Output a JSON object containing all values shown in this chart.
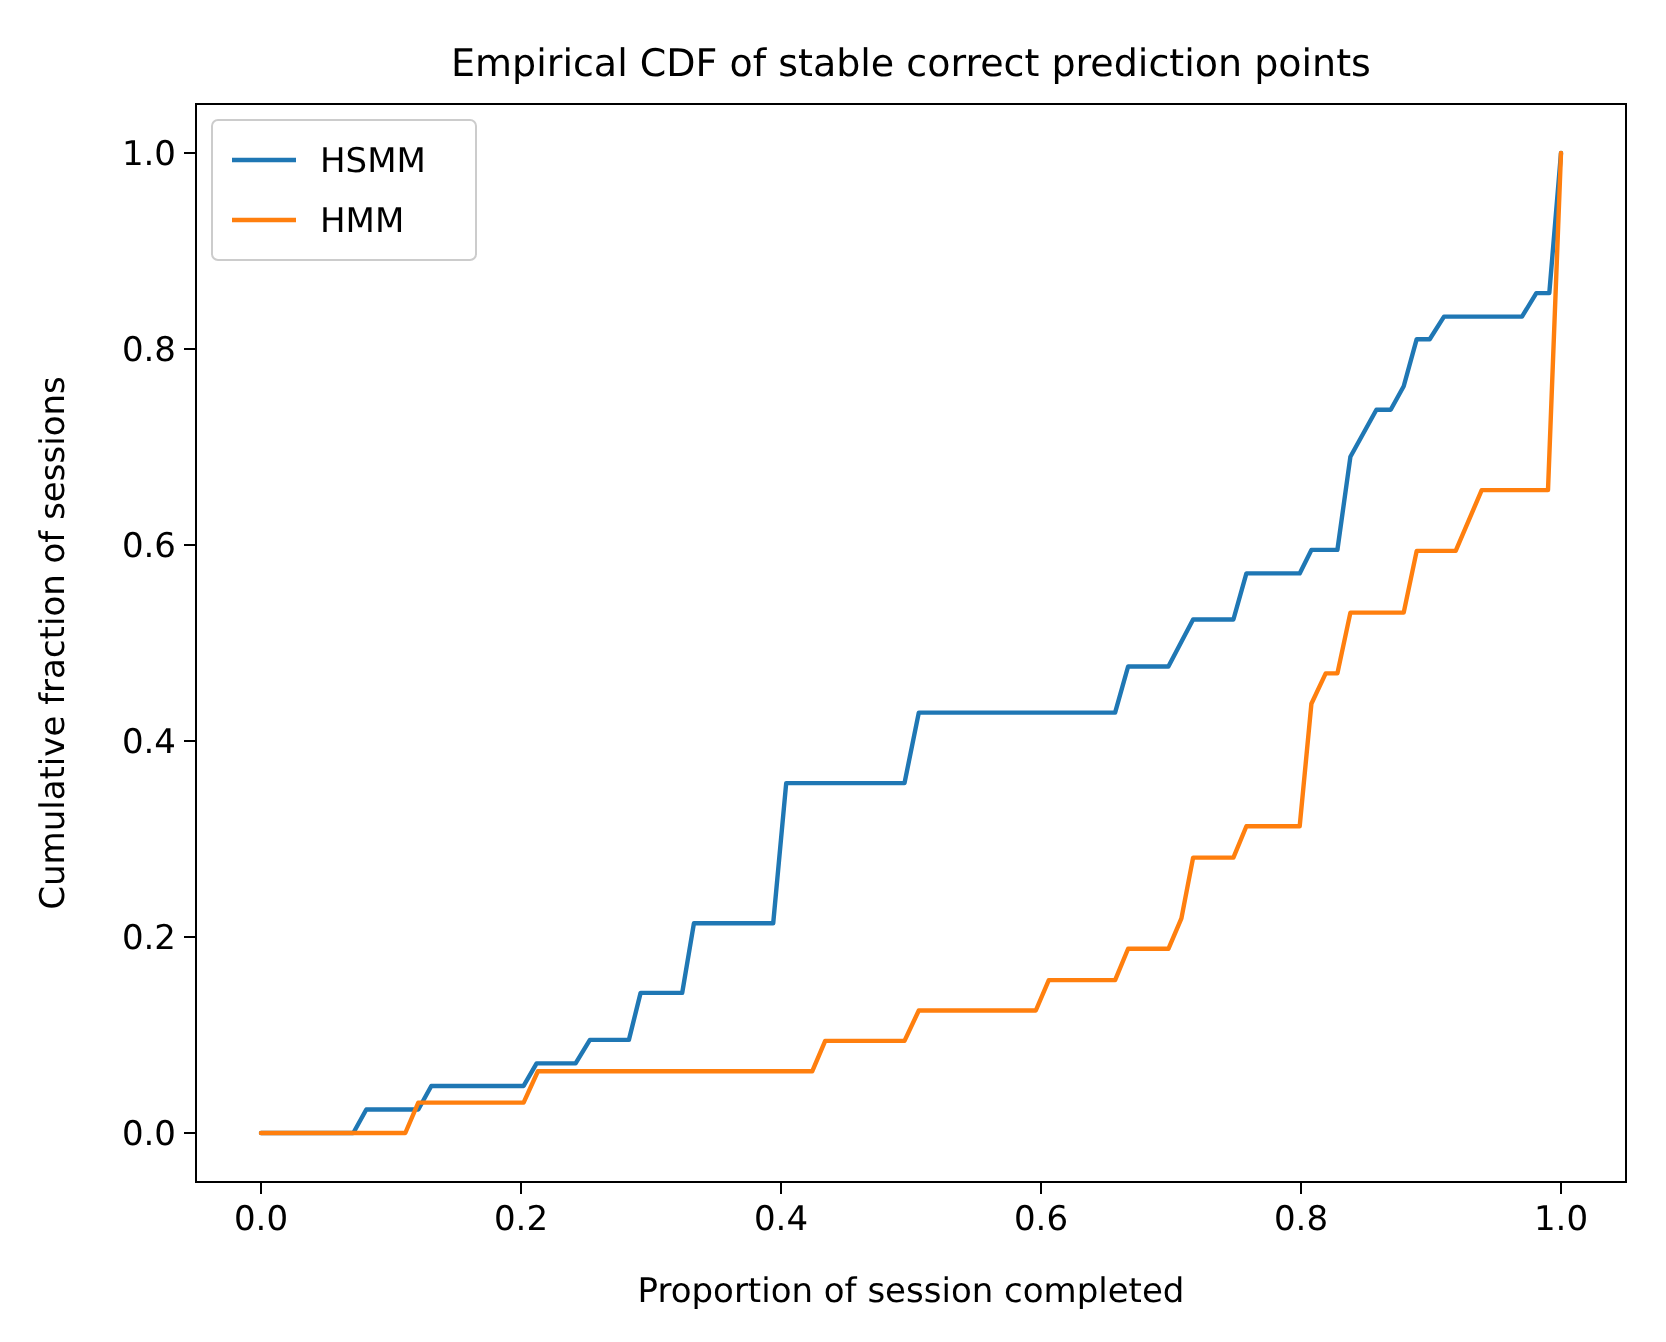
{
  "chart_data": {
    "type": "line",
    "title": "Empirical CDF of stable correct prediction points",
    "xlabel": "Proportion of session completed",
    "ylabel": "Cumulative fraction of sessions",
    "xlim": [
      -0.05,
      1.05
    ],
    "ylim": [
      -0.05,
      1.05
    ],
    "xticks": [
      {
        "value": 0,
        "label": "0.0"
      },
      0.2,
      0.4,
      0.6,
      0.8,
      {
        "value": 1,
        "label": "1.0"
      }
    ],
    "yticks": [
      {
        "value": 0,
        "label": "0.0"
      },
      0.2,
      0.4,
      0.6,
      0.8,
      {
        "value": 1,
        "label": "1.0"
      }
    ],
    "grid": false,
    "legend": "top left",
    "marker": "none",
    "line_style": "solid",
    "series": [
      {
        "name": "HSMM",
        "color": "#1f77b4",
        "x": [
          0,
          0.071,
          0.081,
          0.121,
          0.131,
          0.202,
          0.212,
          0.242,
          0.253,
          0.283,
          0.292,
          0.324,
          0.333,
          0.394,
          0.404,
          0.495,
          0.506,
          0.657,
          0.667,
          0.698,
          0.717,
          0.748,
          0.758,
          0.799,
          0.808,
          0.828,
          0.838,
          0.858,
          0.869,
          0.879,
          0.889,
          0.899,
          0.91,
          0.97,
          0.981,
          0.991,
          1.0
        ],
        "values": [
          0,
          0,
          0.024,
          0.024,
          0.048,
          0.048,
          0.071,
          0.071,
          0.095,
          0.095,
          0.143,
          0.143,
          0.214,
          0.214,
          0.357,
          0.357,
          0.429,
          0.429,
          0.476,
          0.476,
          0.524,
          0.524,
          0.571,
          0.571,
          0.595,
          0.595,
          0.69,
          0.738,
          0.738,
          0.762,
          0.81,
          0.81,
          0.833,
          0.833,
          0.857,
          0.857,
          1.0
        ]
      },
      {
        "name": "HMM",
        "color": "#ff7f0e",
        "x": [
          0,
          0.111,
          0.121,
          0.202,
          0.213,
          0.424,
          0.434,
          0.495,
          0.506,
          0.596,
          0.606,
          0.657,
          0.667,
          0.698,
          0.708,
          0.717,
          0.748,
          0.758,
          0.799,
          0.808,
          0.819,
          0.828,
          0.838,
          0.879,
          0.889,
          0.919,
          0.939,
          0.99,
          1.0
        ],
        "values": [
          0,
          0,
          0.031,
          0.031,
          0.063,
          0.063,
          0.094,
          0.094,
          0.125,
          0.125,
          0.156,
          0.156,
          0.188,
          0.188,
          0.219,
          0.281,
          0.281,
          0.313,
          0.313,
          0.438,
          0.469,
          0.469,
          0.531,
          0.531,
          0.594,
          0.594,
          0.656,
          0.656,
          1.0
        ]
      }
    ]
  }
}
